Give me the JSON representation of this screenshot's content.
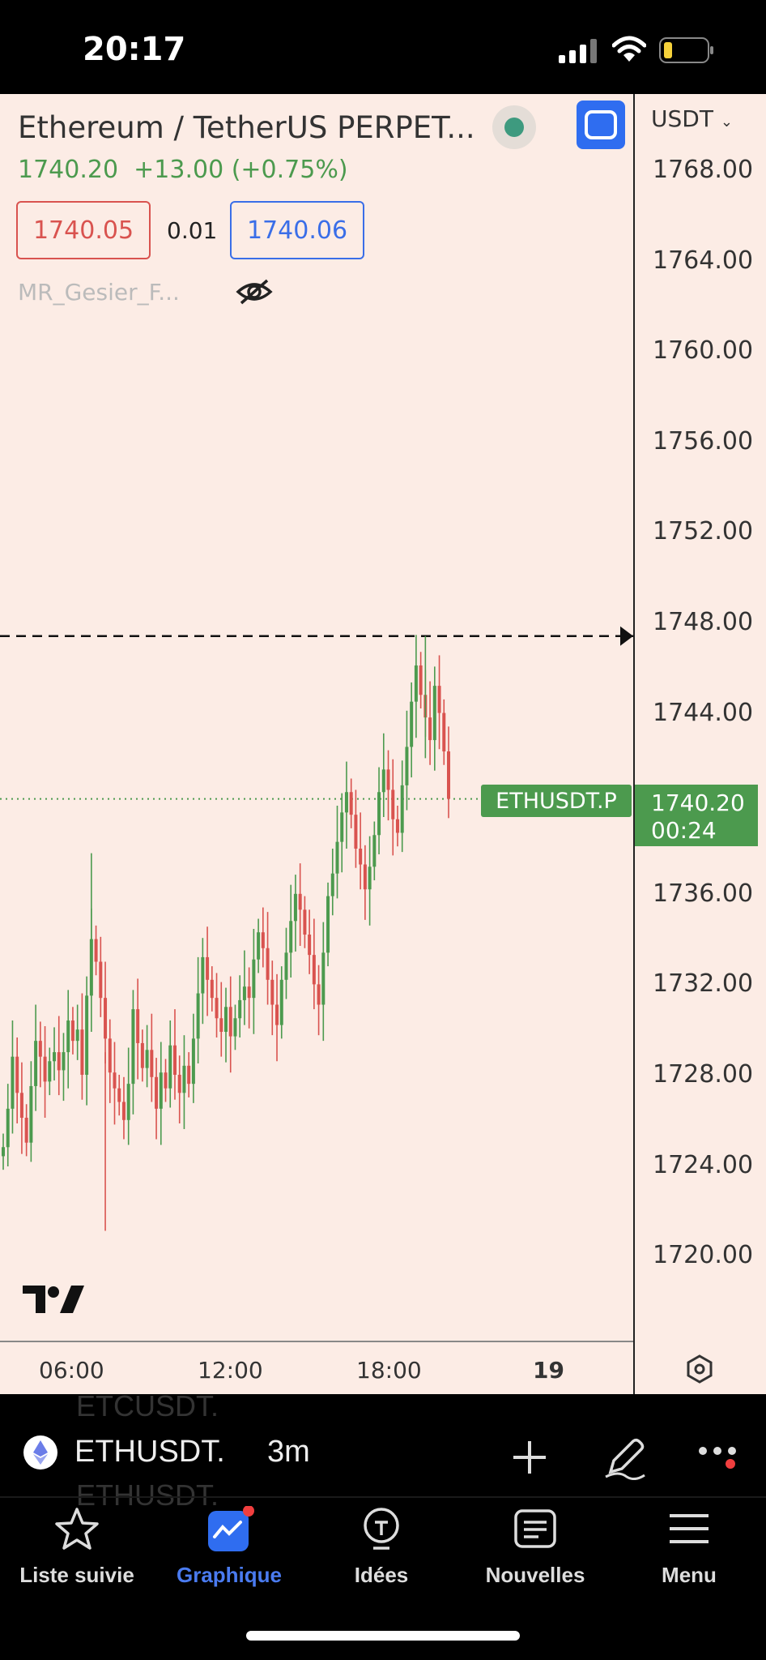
{
  "status": {
    "time": "20:17"
  },
  "header": {
    "title": "Ethereum / TetherUS PERPET...",
    "last_price": "1740.20",
    "change": "+13.00 (+0.75%)",
    "bid": "1740.05",
    "spread": "0.01",
    "ask": "1740.06",
    "indicator_name": "MR_Gesier_F...",
    "currency": "USDT"
  },
  "colors": {
    "up": "#4c9a4e",
    "down": "#d9534f",
    "background": "#fcece5",
    "accent": "#3a6ee8"
  },
  "price_axis": [
    "1768.00",
    "1764.00",
    "1760.00",
    "1756.00",
    "1752.00",
    "1748.00",
    "1744.00",
    "1740.00",
    "1736.00",
    "1732.00",
    "1728.00",
    "1724.00",
    "1720.00"
  ],
  "time_axis": [
    "06:00",
    "12:00",
    "18:00",
    "19"
  ],
  "current_price_tag": {
    "symbol": "ETHUSDT.P",
    "price": "1740.20",
    "countdown": "00:24"
  },
  "chart_data": {
    "type": "candlestick",
    "x_labels": [
      "06:00",
      "12:00",
      "18:00",
      "19"
    ],
    "ylim": [
      1716,
      1770
    ],
    "close_series": [
      1724.8,
      1726.5,
      1728.8,
      1727.2,
      1726.1,
      1725.0,
      1727.5,
      1729.5,
      1728.8,
      1727.7,
      1728.6,
      1729.0,
      1728.2,
      1729.0,
      1730.4,
      1729.5,
      1730.0,
      1728.0,
      1731.5,
      1734.0,
      1733.0,
      1731.4,
      1729.6,
      1728.1,
      1727.4,
      1726.8,
      1726.0,
      1727.6,
      1730.9,
      1729.4,
      1728.3,
      1729.1,
      1727.9,
      1726.5,
      1728.1,
      1727.4,
      1729.3,
      1728.0,
      1727.2,
      1728.4,
      1727.6,
      1729.6,
      1731.6,
      1733.2,
      1732.2,
      1731.4,
      1730.5,
      1729.9,
      1731.0,
      1729.7,
      1730.5,
      1731.3,
      1731.9,
      1731.4,
      1733.1,
      1734.3,
      1733.6,
      1732.2,
      1731.1,
      1730.2,
      1732.2,
      1733.4,
      1734.8,
      1736.0,
      1735.3,
      1734.2,
      1733.3,
      1732.0,
      1731.1,
      1733.4,
      1735.9,
      1736.9,
      1738.3,
      1739.6,
      1740.5,
      1739.5,
      1738.0,
      1737.3,
      1736.2,
      1737.2,
      1738.6,
      1740.5,
      1741.5,
      1740.6,
      1739.3,
      1738.7,
      1740.8,
      1742.5,
      1744.5,
      1746.1,
      1744.8,
      1743.8,
      1742.8,
      1745.2,
      1744.0,
      1742.3,
      1740.2
    ],
    "highs_lows": {
      "high": "1747.40",
      "low": "1721.10"
    }
  },
  "bottom": {
    "symbol": "ETHUSDT.",
    "interval": "3m",
    "ghost_above": "ETCUSDT.",
    "ghost_below": "ETHUSDT."
  },
  "nav": [
    {
      "label": "Liste suivie",
      "icon": "star-icon"
    },
    {
      "label": "Graphique",
      "icon": "chart-icon"
    },
    {
      "label": "Idées",
      "icon": "lightbulb-icon"
    },
    {
      "label": "Nouvelles",
      "icon": "newspaper-icon"
    },
    {
      "label": "Menu",
      "icon": "menu-icon"
    }
  ]
}
